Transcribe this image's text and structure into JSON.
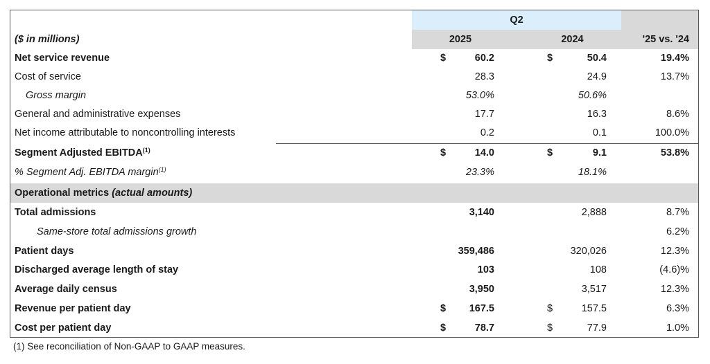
{
  "header": {
    "period": "Q2",
    "units": "($ in millions)",
    "col_2025": "2025",
    "col_2024": "2024",
    "col_change": "'25 vs. '24"
  },
  "financial_rows": [
    {
      "label": "Net service revenue",
      "d25": "$",
      "v25": "60.2",
      "d24": "$",
      "v24": "50.4",
      "chg": "19.4%"
    },
    {
      "label": "Cost of service",
      "d25": "",
      "v25": "28.3",
      "d24": "",
      "v24": "24.9",
      "chg": "13.7%"
    },
    {
      "label": "Gross margin",
      "d25": "",
      "v25": "53.0%",
      "d24": "",
      "v24": "50.6%",
      "chg": ""
    },
    {
      "label": "General and administrative expenses",
      "d25": "",
      "v25": "17.7",
      "d24": "",
      "v24": "16.3",
      "chg": "8.6%"
    },
    {
      "label": "Net income attributable to noncontrolling interests",
      "d25": "",
      "v25": "0.2",
      "d24": "",
      "v24": "0.1",
      "chg": "100.0%"
    },
    {
      "label": "Segment Adjusted EBITDA",
      "sup": "(1)",
      "d25": "$",
      "v25": "14.0",
      "d24": "$",
      "v24": "9.1",
      "chg": "53.8%"
    },
    {
      "label": "% Segment Adj. EBITDA margin",
      "sup": "(1)",
      "d25": "",
      "v25": "23.3%",
      "d24": "",
      "v24": "18.1%",
      "chg": ""
    }
  ],
  "operational_header": {
    "label": "Operational metrics",
    "label_italic": "(actual amounts)"
  },
  "operational_rows": [
    {
      "label": "Total admissions",
      "d25": "",
      "v25": "3,140",
      "d24": "",
      "v24": "2,888",
      "chg": "8.7%"
    },
    {
      "label": "Same-store total admissions growth",
      "d25": "",
      "v25": "",
      "d24": "",
      "v24": "",
      "chg": "6.2%"
    },
    {
      "label": "Patient days",
      "d25": "",
      "v25": "359,486",
      "d24": "",
      "v24": "320,026",
      "chg": "12.3%"
    },
    {
      "label": "Discharged average length of stay",
      "d25": "",
      "v25": "103",
      "d24": "",
      "v24": "108",
      "chg": "(4.6)%"
    },
    {
      "label": "Average daily census",
      "d25": "",
      "v25": "3,950",
      "d24": "",
      "v24": "3,517",
      "chg": "12.3%"
    },
    {
      "label": "Revenue per patient day",
      "d25": "$",
      "v25": "167.5",
      "d24": "$",
      "v24": "157.5",
      "chg": "6.3%"
    },
    {
      "label": "Cost per patient day",
      "d25": "$",
      "v25": "78.7",
      "d24": "$",
      "v24": "77.9",
      "chg": "1.0%"
    }
  ],
  "footnote": "(1) See reconciliation of Non-GAAP to GAAP measures."
}
